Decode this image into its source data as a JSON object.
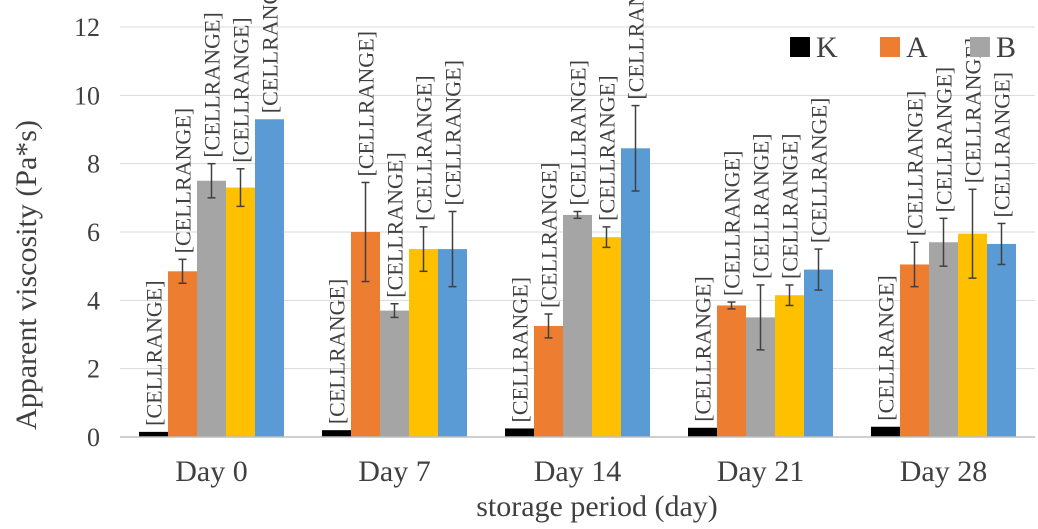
{
  "chart_data": {
    "type": "bar",
    "title": "",
    "xlabel": "storage period (day)",
    "ylabel": "Apparent viscosity (Pa*s)",
    "ylim": [
      0,
      12
    ],
    "yticks": [
      0,
      2,
      4,
      6,
      8,
      10,
      12
    ],
    "grid": true,
    "legend_position": "top-right",
    "categories": [
      "Day 0",
      "Day 7",
      "Day 14",
      "Day 21",
      "Day 28"
    ],
    "data_label_text": "[CELLRANGE]",
    "series": [
      {
        "name": "K",
        "color": "#000000",
        "values": [
          0.15,
          0.2,
          0.25,
          0.27,
          0.3
        ],
        "errors": [
          0,
          0,
          0,
          0,
          0
        ]
      },
      {
        "name": "A",
        "color": "#ED7D31",
        "values": [
          4.85,
          6.0,
          3.25,
          3.85,
          5.05
        ],
        "errors": [
          0.35,
          1.45,
          0.35,
          0.1,
          0.65
        ]
      },
      {
        "name": "B",
        "color": "#A5A5A5",
        "values": [
          7.5,
          3.7,
          6.5,
          3.5,
          5.7
        ],
        "errors": [
          0.5,
          0.2,
          0.1,
          0.95,
          0.7
        ]
      },
      {
        "name": "",
        "color": "#FFC000",
        "values": [
          7.3,
          5.5,
          5.85,
          4.15,
          5.95
        ],
        "errors": [
          0.55,
          0.65,
          0.3,
          0.3,
          1.3
        ]
      },
      {
        "name": "",
        "color": "#5B9BD5",
        "values": [
          9.3,
          5.5,
          8.45,
          4.9,
          5.65
        ],
        "errors": [
          0.0,
          1.1,
          1.25,
          0.6,
          0.6
        ]
      }
    ]
  }
}
